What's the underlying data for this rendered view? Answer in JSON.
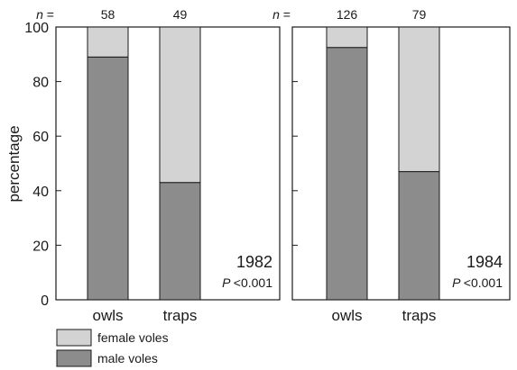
{
  "colors": {
    "female": "#d3d3d3",
    "male": "#8c8c8c",
    "axis": "#1a1a1a"
  },
  "chart_data": [
    {
      "type": "bar",
      "stacked": true,
      "categories": [
        "owls",
        "traps"
      ],
      "series": [
        {
          "name": "male voles",
          "values": [
            89,
            43
          ]
        },
        {
          "name": "female voles",
          "values": [
            11,
            57
          ]
        }
      ],
      "n_label": "n =",
      "n_values": [
        "58",
        "49"
      ],
      "year": "1982",
      "p_symbol": "P",
      "p_value": "<0.001",
      "ylabel": "percentage",
      "ylim": [
        0,
        100
      ],
      "yticks": [
        "0",
        "20",
        "40",
        "60",
        "80",
        "100"
      ],
      "grid": false
    },
    {
      "type": "bar",
      "stacked": true,
      "categories": [
        "owls",
        "traps"
      ],
      "series": [
        {
          "name": "male voles",
          "values": [
            92.5,
            47
          ]
        },
        {
          "name": "female voles",
          "values": [
            7.5,
            53
          ]
        }
      ],
      "n_label": "n =",
      "n_values": [
        "126",
        "79"
      ],
      "year": "1984",
      "p_symbol": "P",
      "p_value": "<0.001",
      "ylim": [
        0,
        100
      ],
      "grid": false
    }
  ],
  "legend": {
    "placement": "bottom-left",
    "items": [
      {
        "label": "female voles",
        "color": "#d3d3d3"
      },
      {
        "label": "male voles",
        "color": "#8c8c8c"
      }
    ]
  }
}
